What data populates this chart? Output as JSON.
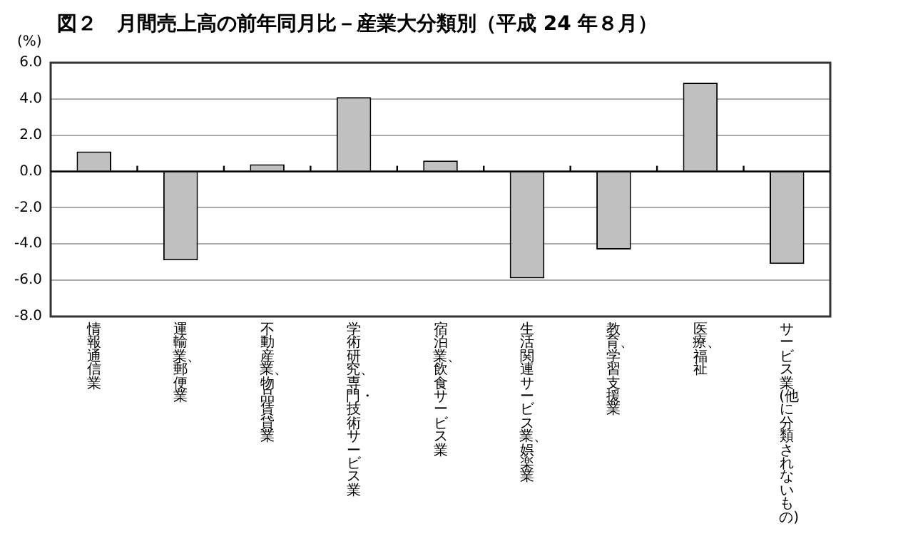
{
  "chart_data": {
    "type": "bar",
    "title": "図２　月間売上高の前年同月比－産業大分類別（平成 24 年８月）",
    "ylabel": "(%)",
    "categories": [
      "情報通信業",
      "運輸業、郵便業",
      "不動産業、物品賃貸業",
      "学術研究、専門・技術サービス業",
      "宿泊業、飲食サービス業",
      "生活関連サービス業、娯楽業",
      "教育、学習支援業",
      "医療、福祉",
      "サービス業(他に分類されないもの)"
    ],
    "values": [
      1.1,
      -4.9,
      0.4,
      4.1,
      0.6,
      -5.9,
      -4.3,
      4.9,
      -5.1
    ],
    "color": "#c0c0c0",
    "ylim": [
      -8,
      6
    ],
    "yticks": [
      {
        "value": -8,
        "label": "-8.0"
      },
      {
        "value": -6,
        "label": "-6.0"
      },
      {
        "value": -4,
        "label": "-4.0"
      },
      {
        "value": -2,
        "label": "-2.0"
      },
      {
        "value": 0,
        "label": "0.0"
      },
      {
        "value": 2,
        "label": "2.0"
      },
      {
        "value": 4,
        "label": "4.0"
      },
      {
        "value": 6,
        "label": "6.0"
      }
    ],
    "grid": "y"
  }
}
